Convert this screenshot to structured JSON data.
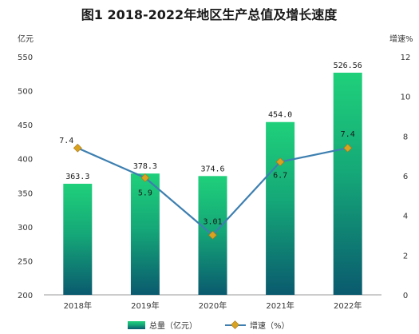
{
  "chart_data": {
    "type": "bar+line",
    "title": "图1  2018-2022年地区生产总值及增长速度",
    "categories": [
      "2018年",
      "2019年",
      "2020年",
      "2021年",
      "2022年"
    ],
    "series": [
      {
        "name": "总量（亿元）",
        "type": "bar",
        "axis": "left",
        "values": [
          363.3,
          378.3,
          374.6,
          454.0,
          526.56
        ],
        "labels": [
          "363.3",
          "378.3",
          "374.6",
          "454.0",
          "526.56"
        ]
      },
      {
        "name": "增速（%）",
        "type": "line",
        "axis": "right",
        "values": [
          7.4,
          5.9,
          3.01,
          6.7,
          7.4
        ],
        "labels": [
          "7.4",
          "5.9",
          "3.01",
          "6.7",
          "7.4"
        ]
      }
    ],
    "left_axis": {
      "unit": "亿元",
      "min": 200,
      "max": 550,
      "step": 50,
      "ticks": [
        "200",
        "250",
        "300",
        "350",
        "400",
        "450",
        "500",
        "550"
      ]
    },
    "right_axis": {
      "unit": "增速%",
      "min": 0,
      "max": 12,
      "step": 2,
      "ticks": [
        "0",
        "2",
        "4",
        "6",
        "8",
        "10",
        "12"
      ]
    },
    "legend_position": "bottom-center",
    "grid": false,
    "colors": {
      "bar_top": "#1fd07a",
      "bar_bottom": "#0a5a6e",
      "line": "#3d7fb0",
      "marker": "#d9a21f",
      "marker_stroke": "#a8741a"
    }
  }
}
